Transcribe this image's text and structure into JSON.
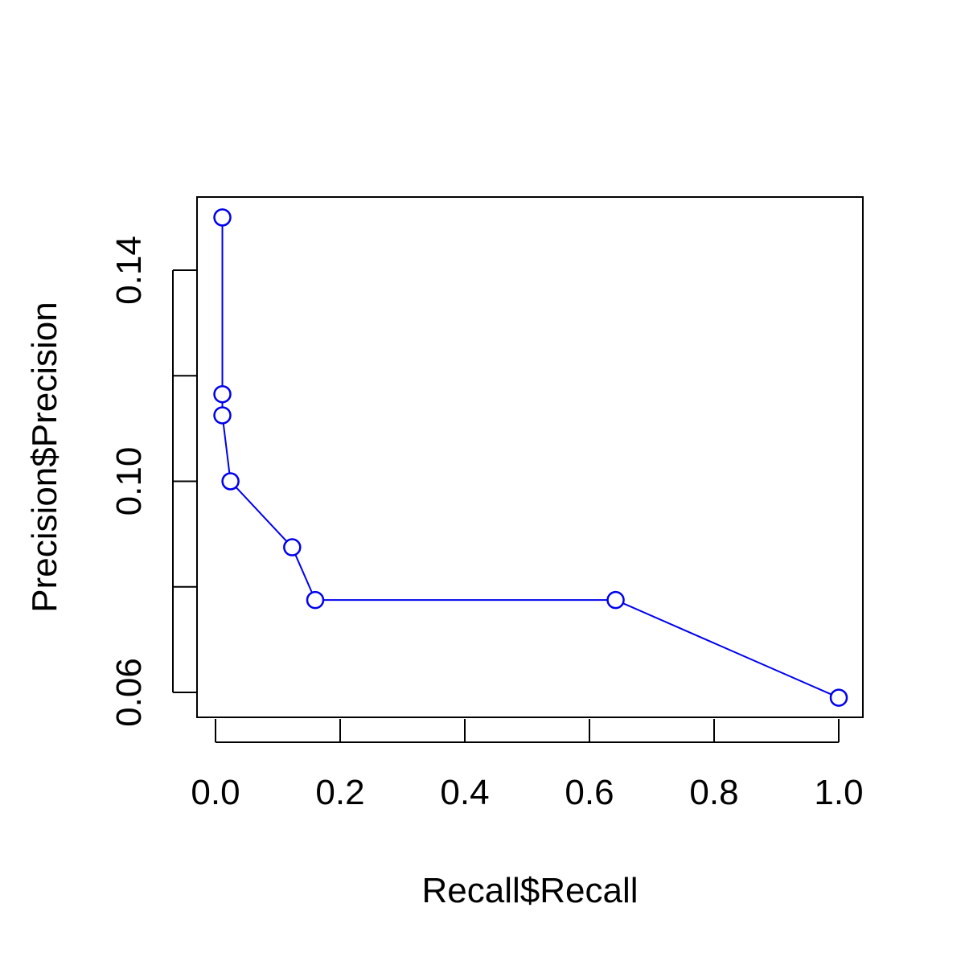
{
  "chart_data": {
    "type": "line",
    "title": "",
    "xlabel": "Recall$Recall",
    "ylabel": "Precision$Precision",
    "xlim": [
      0.0,
      1.0
    ],
    "ylim": [
      0.06,
      0.14
    ],
    "x_ticks": [
      0.0,
      0.2,
      0.4,
      0.6,
      0.8,
      1.0
    ],
    "x_tick_labels": [
      "0.0",
      "0.2",
      "0.4",
      "0.6",
      "0.8",
      "1.0"
    ],
    "y_ticks": [
      0.06,
      0.08,
      0.1,
      0.12,
      0.14
    ],
    "y_tick_labels": [
      "0.06",
      "",
      "0.10",
      "",
      "0.14"
    ],
    "grid": false,
    "legend": "none",
    "series": [
      {
        "color": "#0000ee",
        "marker": "open-circle",
        "x": [
          0.011,
          0.011,
          0.011,
          0.024,
          0.123,
          0.16,
          0.642,
          1.0
        ],
        "y": [
          0.15,
          0.1165,
          0.1125,
          0.1,
          0.0875,
          0.0775,
          0.0775,
          0.059
        ]
      }
    ]
  }
}
